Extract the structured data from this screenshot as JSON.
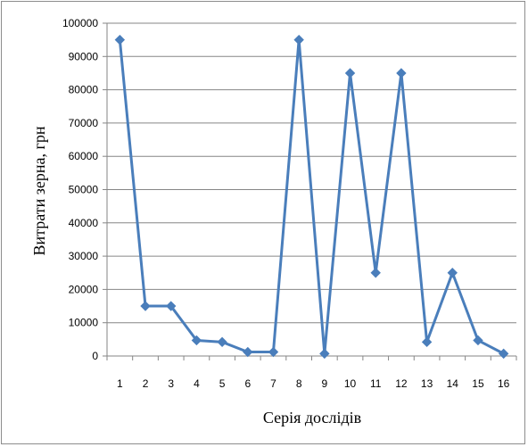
{
  "chart_data": {
    "type": "line",
    "xlabel": "Серія дослідів",
    "ylabel": "Витрати зерна, грн",
    "x": [
      "1",
      "2",
      "3",
      "4",
      "5",
      "6",
      "7",
      "8",
      "9",
      "10",
      "11",
      "12",
      "13",
      "14",
      "15",
      "16"
    ],
    "series": [
      {
        "values": [
          95000,
          15000,
          15000,
          4700,
          4200,
          1200,
          1200,
          95000,
          700,
          85000,
          25000,
          85000,
          4200,
          25000,
          4700,
          700
        ]
      }
    ],
    "ylim": [
      0,
      100000
    ],
    "yticks": [
      "0",
      "10000",
      "20000",
      "30000",
      "40000",
      "50000",
      "60000",
      "70000",
      "80000",
      "90000",
      "100000"
    ],
    "grid": true,
    "legend": "none",
    "colors": {
      "line": "#4a7ebb",
      "grid": "#868686",
      "axis": "#868686"
    },
    "marker": "diamond"
  }
}
